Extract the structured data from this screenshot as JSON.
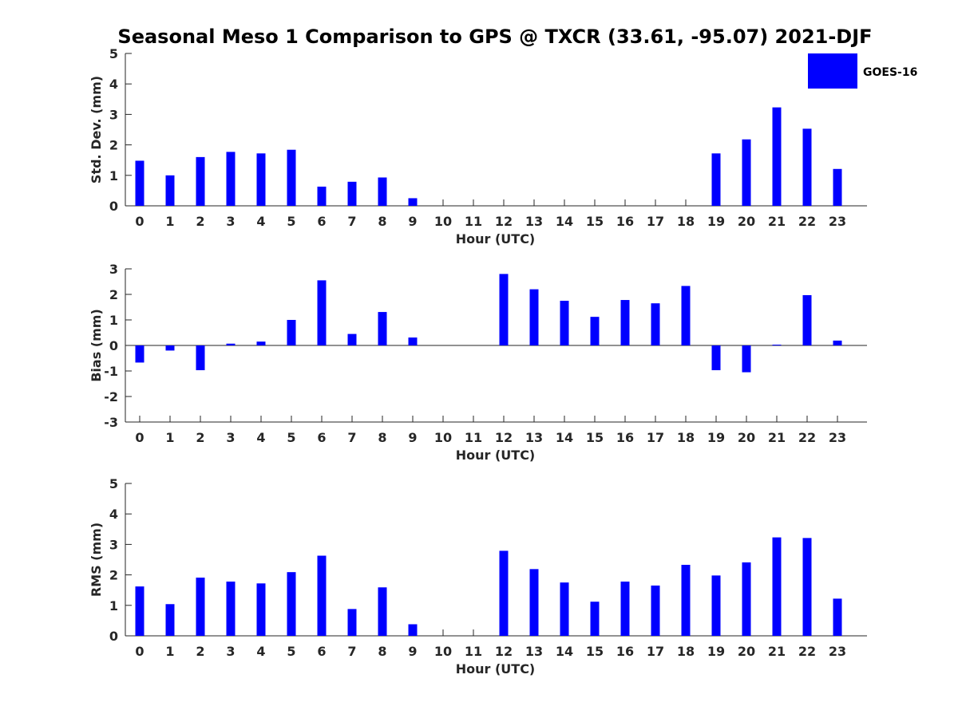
{
  "figure": {
    "title": "Seasonal Meso 1 Comparison to GPS @ TXCR (33.61, -95.07) 2021-DJF"
  },
  "legend": {
    "label": "GOES-16",
    "placement": "top-right",
    "color": "#0000ff"
  },
  "chart_data": [
    {
      "type": "bar",
      "xlabel": "Hour (UTC)",
      "ylabel": "Std. Dev. (mm)",
      "ylim": [
        0,
        5
      ],
      "yticks": [
        0,
        1,
        2,
        3,
        4,
        5
      ],
      "categories": [
        "0",
        "1",
        "2",
        "3",
        "4",
        "5",
        "6",
        "7",
        "8",
        "9",
        "10",
        "11",
        "12",
        "13",
        "14",
        "15",
        "16",
        "17",
        "18",
        "19",
        "20",
        "21",
        "22",
        "23"
      ],
      "series": [
        {
          "name": "GOES-16",
          "color": "#0000ff",
          "values": [
            1.48,
            1.0,
            1.6,
            1.77,
            1.72,
            1.84,
            0.63,
            0.79,
            0.93,
            0.25,
            null,
            null,
            null,
            null,
            null,
            null,
            null,
            null,
            null,
            1.72,
            2.18,
            3.23,
            2.53,
            1.21
          ]
        }
      ],
      "grid": false
    },
    {
      "type": "bar",
      "xlabel": "Hour (UTC)",
      "ylabel": "Bias (mm)",
      "ylim": [
        -3,
        3
      ],
      "yticks": [
        -3,
        -2,
        -1,
        0,
        1,
        2,
        3
      ],
      "categories": [
        "0",
        "1",
        "2",
        "3",
        "4",
        "5",
        "6",
        "7",
        "8",
        "9",
        "10",
        "11",
        "12",
        "13",
        "14",
        "15",
        "16",
        "17",
        "18",
        "19",
        "20",
        "21",
        "22",
        "23"
      ],
      "series": [
        {
          "name": "GOES-16",
          "color": "#0000ff",
          "values": [
            -0.67,
            -0.2,
            -0.97,
            0.07,
            0.15,
            1.0,
            2.55,
            0.45,
            1.31,
            0.31,
            null,
            null,
            2.8,
            2.2,
            1.75,
            1.12,
            1.78,
            1.65,
            2.33,
            -0.97,
            -1.05,
            0.03,
            1.97,
            0.19
          ]
        }
      ],
      "grid": false
    },
    {
      "type": "bar",
      "xlabel": "Hour (UTC)",
      "ylabel": "RMS (mm)",
      "ylim": [
        0,
        5
      ],
      "yticks": [
        0,
        1,
        2,
        3,
        4,
        5
      ],
      "categories": [
        "0",
        "1",
        "2",
        "3",
        "4",
        "5",
        "6",
        "7",
        "8",
        "9",
        "10",
        "11",
        "12",
        "13",
        "14",
        "15",
        "16",
        "17",
        "18",
        "19",
        "20",
        "21",
        "22",
        "23"
      ],
      "series": [
        {
          "name": "GOES-16",
          "color": "#0000ff",
          "values": [
            1.62,
            1.04,
            1.91,
            1.78,
            1.72,
            2.09,
            2.63,
            0.88,
            1.59,
            0.38,
            null,
            null,
            2.79,
            2.19,
            1.75,
            1.12,
            1.78,
            1.65,
            2.33,
            1.98,
            2.41,
            3.23,
            3.21,
            1.22
          ]
        }
      ],
      "grid": false
    }
  ]
}
